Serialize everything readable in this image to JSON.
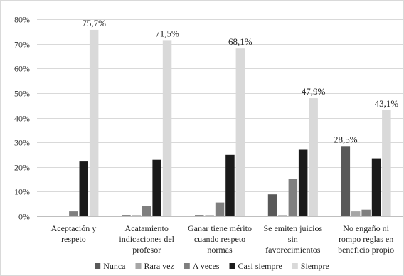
{
  "chart_data": {
    "type": "bar",
    "title": "",
    "xlabel": "",
    "ylabel": "",
    "ylim": [
      0,
      80
    ],
    "yticks": [
      0,
      10,
      20,
      30,
      40,
      50,
      60,
      70,
      80
    ],
    "ytick_labels": [
      "0%",
      "10%",
      "20%",
      "30%",
      "40%",
      "50%",
      "60%",
      "70%",
      "80%"
    ],
    "grid": true,
    "legend_position": "bottom",
    "categories": [
      [
        "Aceptación y",
        "respeto"
      ],
      [
        "Acatamiento",
        "indicaciones del",
        "profesor"
      ],
      [
        "Ganar tiene mérito",
        "cuando respeto",
        "normas"
      ],
      [
        "Se emiten juicios",
        "sin",
        "favorecimientos"
      ],
      [
        "No engaño ni",
        "rompo reglas en",
        "beneficio propio"
      ]
    ],
    "series": [
      {
        "name": "Nunca",
        "color": "#595959",
        "values": [
          0,
          0.5,
          0.5,
          8.9,
          28.5
        ]
      },
      {
        "name": "Rara vez",
        "color": "#a6a6a6",
        "values": [
          0,
          0.5,
          0.5,
          0.5,
          2.0
        ]
      },
      {
        "name": "A veces",
        "color": "#7f7f7f",
        "values": [
          2.0,
          4.1,
          5.6,
          15.1,
          2.7
        ]
      },
      {
        "name": "Casi siempre",
        "color": "#1a1a1a",
        "values": [
          22.2,
          22.9,
          24.9,
          27.0,
          23.5
        ]
      },
      {
        "name": "Siempre",
        "color": "#d9d9d9",
        "values": [
          75.7,
          71.5,
          68.1,
          47.9,
          43.1
        ]
      }
    ],
    "data_labels": [
      {
        "series": 4,
        "category": 0,
        "text": "75,7%"
      },
      {
        "series": 4,
        "category": 1,
        "text": "71,5%"
      },
      {
        "series": 4,
        "category": 2,
        "text": "68,1%"
      },
      {
        "series": 4,
        "category": 3,
        "text": "47,9%"
      },
      {
        "series": 4,
        "category": 4,
        "text": "43,1%"
      },
      {
        "series": 0,
        "category": 4,
        "text": "28,5%"
      }
    ]
  }
}
